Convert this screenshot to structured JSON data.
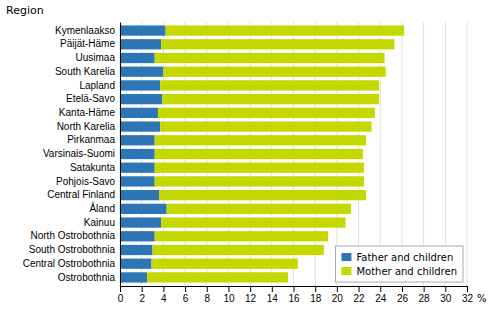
{
  "chart_data": {
    "type": "bar",
    "orientation": "horizontal",
    "stacked": true,
    "y_label": "Region",
    "x_label": "%",
    "categories": [
      "Kymenlaakso",
      "Päijät-Häme",
      "Uusimaa",
      "South Karelia",
      "Lapland",
      "Etelä-Savo",
      "Kanta-Häme",
      "North Karelia",
      "Pirkanmaa",
      "Varsinais-Suomi",
      "Satakunta",
      "Pohjois-Savo",
      "Central Finland",
      "Åland",
      "Kainuu",
      "North Ostrobothnia",
      "South Ostrobothnia",
      "Central Ostrobothnia",
      "Ostrobothnia"
    ],
    "series": [
      {
        "name": "Father and children",
        "color": "#2e75b6",
        "values": [
          4.2,
          3.8,
          3.2,
          4.0,
          3.7,
          3.9,
          3.5,
          3.7,
          3.2,
          3.2,
          3.2,
          3.2,
          3.6,
          4.3,
          3.8,
          3.2,
          3.0,
          2.9,
          2.5
        ]
      },
      {
        "name": "Mother and children",
        "color": "#c5d900",
        "values": [
          22.0,
          21.5,
          21.2,
          20.5,
          20.2,
          20.0,
          20.0,
          19.5,
          19.5,
          19.2,
          19.3,
          19.3,
          19.1,
          17.0,
          17.0,
          16.0,
          15.8,
          13.5,
          13.0
        ]
      }
    ],
    "xlim": [
      0,
      32
    ],
    "xticks": [
      0,
      2,
      4,
      6,
      8,
      10,
      12,
      14,
      16,
      18,
      20,
      22,
      24,
      26,
      28,
      30,
      32
    ],
    "grid": true,
    "legend": "lower right"
  }
}
